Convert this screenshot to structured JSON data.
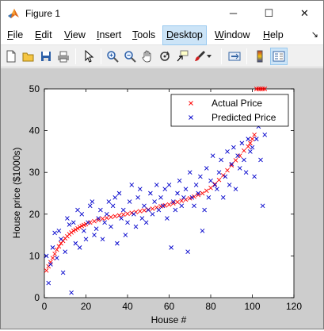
{
  "window": {
    "title": "Figure 1",
    "controls": {
      "minimize": "─",
      "maximize": "☐",
      "close": "✕"
    }
  },
  "menu": {
    "items": [
      {
        "label": "File",
        "mnemonic": "F",
        "rest": "ile"
      },
      {
        "label": "Edit",
        "mnemonic": "E",
        "rest": "dit"
      },
      {
        "label": "View",
        "mnemonic": "V",
        "rest": "iew"
      },
      {
        "label": "Insert",
        "mnemonic": "I",
        "rest": "nsert"
      },
      {
        "label": "Tools",
        "mnemonic": "T",
        "rest": "ools"
      },
      {
        "label": "Desktop",
        "mnemonic": "D",
        "rest": "esktop"
      },
      {
        "label": "Window",
        "mnemonic": "W",
        "rest": "indow"
      },
      {
        "label": "Help",
        "mnemonic": "H",
        "rest": "elp"
      }
    ],
    "active": "Desktop",
    "overflow_icon": "↘"
  },
  "toolbar": {
    "buttons": [
      "new-figure-icon",
      "open-file-icon",
      "save-icon",
      "print-icon",
      "pointer-icon",
      "zoom-in-icon",
      "zoom-out-icon",
      "pan-icon",
      "rotate-icon",
      "data-cursor-icon",
      "brush-icon",
      "link-icon",
      "colorbar-icon",
      "legend-icon"
    ]
  },
  "colors": {
    "actual": "#ff0000",
    "predicted": "#0000cc",
    "figure_bg": "#cdcdcd",
    "menu_highlight": "#cce4f7"
  },
  "chart_data": {
    "type": "scatter",
    "xlabel": "House #",
    "ylabel": "House price ($1000s)",
    "xlim": [
      0,
      120
    ],
    "ylim": [
      0,
      50
    ],
    "xticks": [
      "0",
      "20",
      "40",
      "60",
      "80",
      "100",
      "120"
    ],
    "yticks": [
      "0",
      "10",
      "20",
      "30",
      "40",
      "50"
    ],
    "legend": {
      "position": "top-right",
      "entries": [
        "Actual Price",
        "Predicted Price"
      ]
    },
    "grid": false,
    "series": [
      {
        "name": "Actual Price",
        "marker": "x",
        "color": "#ff0000",
        "x": [
          1,
          2,
          3,
          4,
          5,
          6,
          7,
          8,
          9,
          10,
          11,
          12,
          13,
          14,
          15,
          16,
          17,
          18,
          19,
          20,
          22,
          24,
          26,
          28,
          30,
          32,
          34,
          36,
          38,
          40,
          42,
          44,
          46,
          48,
          50,
          52,
          54,
          56,
          58,
          60,
          62,
          64,
          66,
          68,
          70,
          72,
          74,
          76,
          78,
          80,
          82,
          84,
          86,
          88,
          90,
          92,
          94,
          96,
          98,
          99,
          100,
          101,
          102,
          103,
          104,
          105,
          106
        ],
        "y": [
          6.5,
          7.5,
          8.5,
          9.5,
          10.5,
          11.5,
          12.3,
          13,
          13.6,
          14.2,
          14.7,
          15.2,
          15.6,
          16,
          16.3,
          16.6,
          16.9,
          17.2,
          17.4,
          17.6,
          18,
          18.3,
          18.6,
          18.9,
          19.1,
          19.3,
          19.5,
          19.7,
          19.9,
          20.1,
          20.3,
          20.5,
          20.7,
          20.9,
          21.1,
          21.3,
          21.6,
          21.9,
          22.1,
          22.3,
          22.6,
          22.9,
          23.2,
          23.5,
          23.8,
          24.2,
          24.6,
          25,
          25.6,
          26.3,
          27.2,
          28.2,
          29.3,
          30.5,
          31.7,
          32.9,
          34,
          35.2,
          36.2,
          37,
          38,
          39,
          50,
          50,
          50,
          50,
          50
        ]
      },
      {
        "name": "Predicted Price",
        "marker": "x",
        "color": "#0000cc",
        "x": [
          1,
          2,
          3,
          4,
          5,
          6,
          7,
          8,
          9,
          10,
          11,
          12,
          13,
          14,
          15,
          16,
          17,
          18,
          19,
          20,
          21,
          22,
          23,
          24,
          25,
          26,
          27,
          28,
          29,
          30,
          31,
          32,
          33,
          34,
          35,
          36,
          37,
          38,
          39,
          40,
          41,
          42,
          43,
          44,
          45,
          46,
          47,
          48,
          49,
          50,
          51,
          52,
          53,
          54,
          55,
          56,
          57,
          58,
          59,
          60,
          61,
          62,
          63,
          64,
          65,
          66,
          67,
          68,
          69,
          70,
          71,
          72,
          73,
          74,
          75,
          76,
          77,
          78,
          79,
          80,
          81,
          82,
          83,
          84,
          85,
          86,
          87,
          88,
          89,
          90,
          91,
          92,
          93,
          94,
          95,
          96,
          97,
          98,
          99,
          100,
          101,
          102,
          103,
          104,
          105,
          106
        ],
        "y": [
          10,
          3.5,
          8,
          12,
          15.5,
          9.5,
          16,
          14,
          6,
          11,
          19,
          17.5,
          1.2,
          18,
          13,
          21,
          12,
          20,
          16,
          14,
          18,
          22,
          23,
          15,
          16.5,
          19,
          21,
          14,
          18,
          20,
          23,
          17,
          22,
          24,
          13,
          25,
          19,
          21,
          15,
          18,
          23,
          27,
          20,
          17,
          24,
          26,
          19,
          22,
          18,
          21,
          25,
          20,
          23,
          27,
          21,
          24,
          22,
          26,
          19,
          27,
          12,
          23,
          21,
          25,
          28,
          22,
          24,
          26,
          11,
          30,
          24,
          22,
          27,
          25,
          29,
          16,
          21,
          31,
          24,
          28,
          34,
          27,
          26,
          30,
          33,
          24,
          29,
          35,
          27,
          32,
          36,
          26,
          34,
          31,
          37,
          33,
          30,
          38,
          35,
          36,
          29,
          38,
          41,
          33,
          22,
          39
        ]
      }
    ]
  }
}
